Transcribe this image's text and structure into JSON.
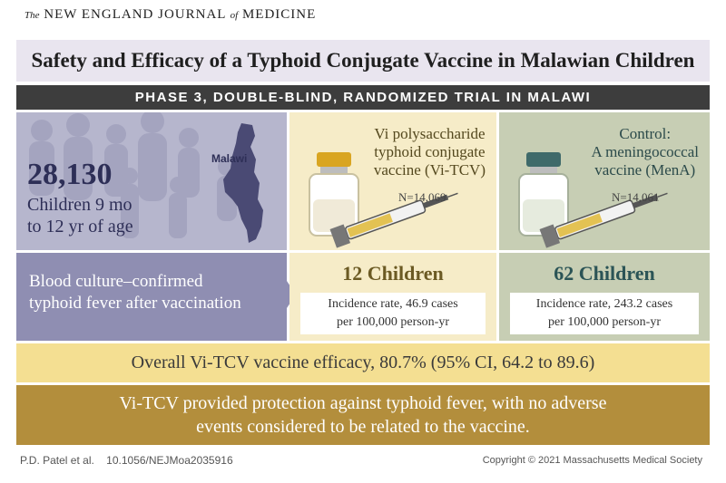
{
  "journal": {
    "prefix": "The",
    "main": "NEW ENGLAND JOURNAL",
    "of": "of",
    "suffix": "MEDICINE"
  },
  "title": "Safety and Efficacy of a Typhoid Conjugate Vaccine in Malawian Children",
  "subtitle": "PHASE 3, DOUBLE-BLIND, RANDOMIZED TRIAL IN MALAWI",
  "population": {
    "count": "28,130",
    "desc_line1": "Children 9 mo",
    "desc_line2": "to 12 yr of age",
    "map_label": "Malawi"
  },
  "vi_tcv": {
    "name_line1": "Vi polysaccharide",
    "name_line2": "typhoid conjugate",
    "name_line3": "vaccine (Vi-TCV)",
    "n": "N=14,069",
    "children": "12 Children",
    "rate_line1": "Incidence rate, 46.9 cases",
    "rate_line2": "per 100,000 person-yr"
  },
  "control": {
    "name_line1": "Control:",
    "name_line2": "A meningococcal",
    "name_line3": "vaccine (MenA)",
    "n": "N=14,061",
    "children": "62 Children",
    "rate_line1": "Incidence rate, 243.2 cases",
    "rate_line2": "per 100,000 person-yr"
  },
  "outcome": {
    "line1": "Blood culture–confirmed",
    "line2": "typhoid fever after vaccination"
  },
  "efficacy": "Overall Vi-TCV vaccine efficacy, 80.7% (95% CI, 64.2 to 89.6)",
  "conclusion_line1": "Vi-TCV provided protection against typhoid fever, with no adverse",
  "conclusion_line2": "events considered to be related to the vaccine.",
  "footer": {
    "authors": "P.D. Patel et al.",
    "doi": "10.1056/NEJMoa2035916",
    "copyright": "Copyright © 2021 Massachusetts Medical Society"
  },
  "colors": {
    "title_band": "#e9e5ef",
    "subtitle_band": "#3d3d3d",
    "population_panel": "#b6b6cd",
    "outcome_panel": "#8f8eb2",
    "vi_panel": "#f6ecc8",
    "control_panel": "#c7ceb4",
    "efficacy_band": "#f4df92",
    "conclusion_band": "#b38e3c"
  },
  "icons": [
    "journal-logo",
    "children-silhouettes",
    "malawi-map-icon",
    "vaccine-vial-icon",
    "syringe-icon",
    "arrow-right-icon"
  ]
}
